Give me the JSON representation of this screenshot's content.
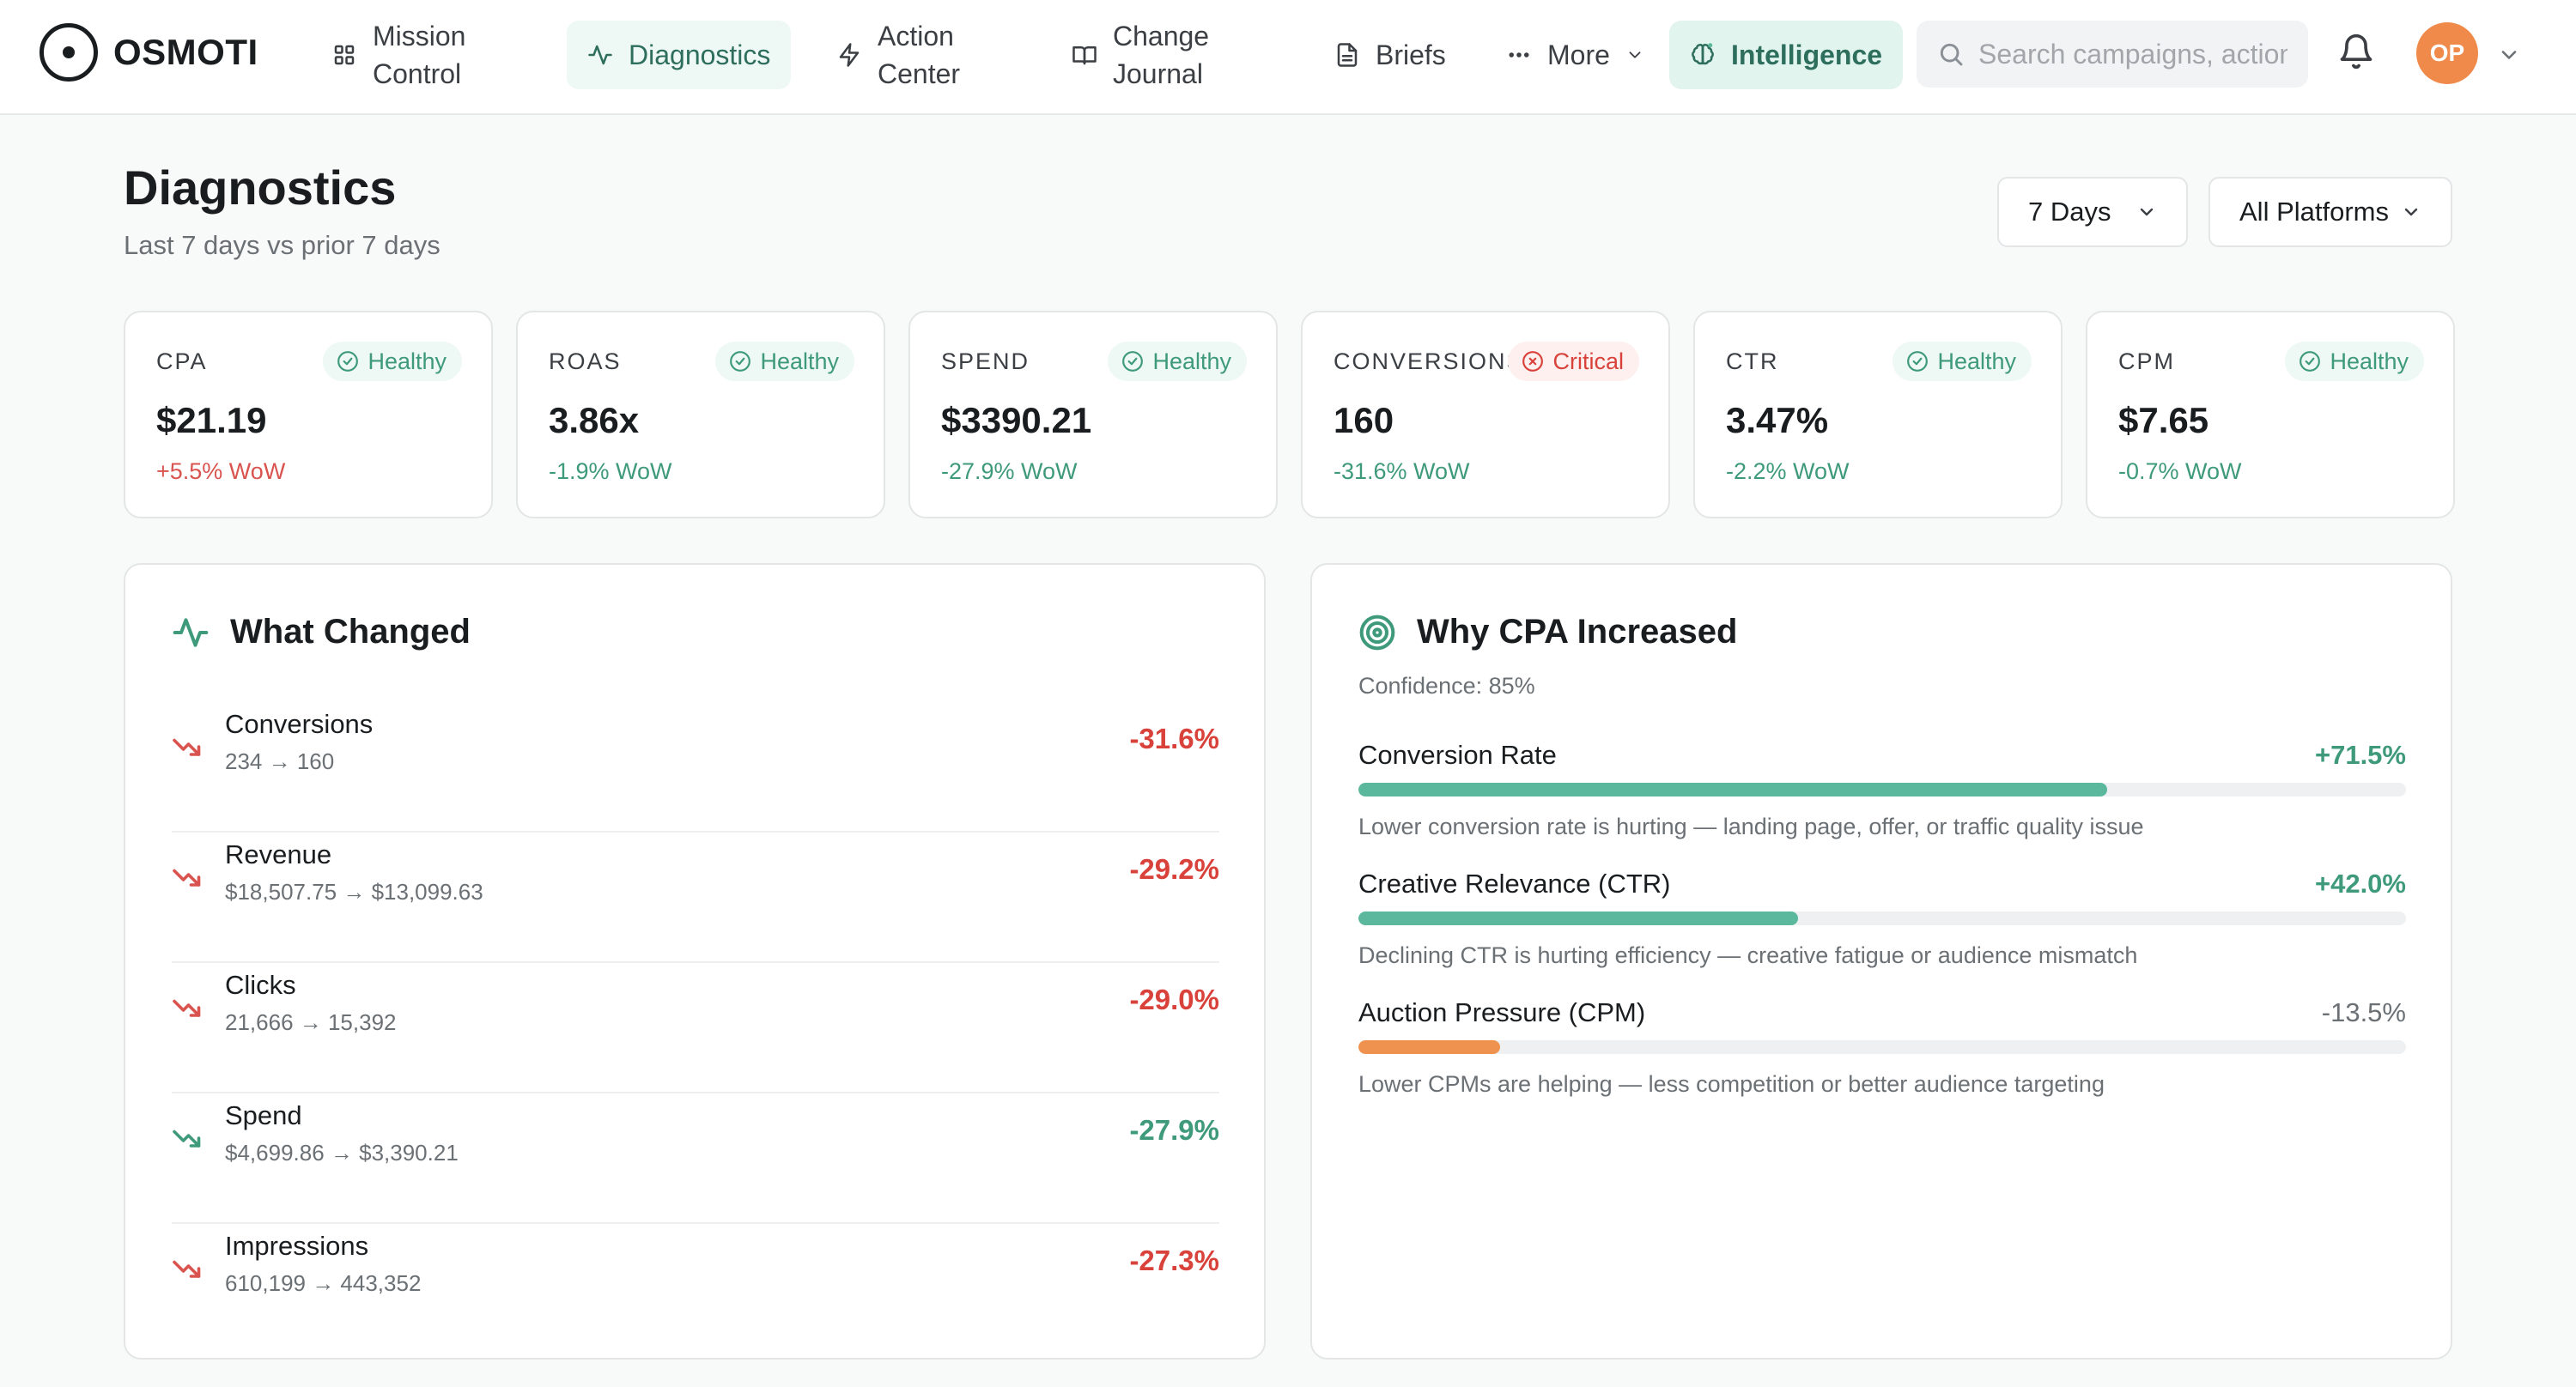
{
  "brand": {
    "name": "OSMOTI"
  },
  "nav": {
    "items": [
      {
        "label": "Mission Control",
        "icon": "grid-icon"
      },
      {
        "label": "Diagnostics",
        "icon": "activity-icon",
        "active": true
      },
      {
        "label": "Action Center",
        "icon": "zap-icon"
      },
      {
        "label": "Change Journal",
        "icon": "book-open-icon"
      },
      {
        "label": "Briefs",
        "icon": "file-text-icon"
      },
      {
        "label": "More",
        "icon": "more-horizontal-icon"
      },
      {
        "label": "Intelligence",
        "icon": "brain-icon"
      }
    ],
    "search_placeholder": "Search campaigns, actions...",
    "avatar_initials": "OP"
  },
  "header": {
    "title": "Diagnostics",
    "subtitle": "Last 7 days vs prior 7 days",
    "range_select": "7 Days",
    "platform_select": "All Platforms"
  },
  "kpis": [
    {
      "label": "CPA",
      "status": "Healthy",
      "value": "$21.19",
      "delta": "+5.5% WoW",
      "delta_tone": "negative"
    },
    {
      "label": "ROAS",
      "status": "Healthy",
      "value": "3.86x",
      "delta": "-1.9% WoW",
      "delta_tone": "positive"
    },
    {
      "label": "SPEND",
      "status": "Healthy",
      "value": "$3390.21",
      "delta": "-27.9% WoW",
      "delta_tone": "positive"
    },
    {
      "label": "CONVERSIONS",
      "status": "Critical",
      "value": "160",
      "delta": "-31.6% WoW",
      "delta_tone": "positive"
    },
    {
      "label": "CTR",
      "status": "Healthy",
      "value": "3.47%",
      "delta": "-2.2% WoW",
      "delta_tone": "positive"
    },
    {
      "label": "CPM",
      "status": "Healthy",
      "value": "$7.65",
      "delta": "-0.7% WoW",
      "delta_tone": "positive"
    }
  ],
  "what_changed": {
    "title": "What Changed",
    "rows": [
      {
        "name": "Conversions",
        "from_to": "234 → 160",
        "pct": "-31.6%",
        "tone": "negative"
      },
      {
        "name": "Revenue",
        "from_to": "$18,507.75 → $13,099.63",
        "pct": "-29.2%",
        "tone": "negative"
      },
      {
        "name": "Clicks",
        "from_to": "21,666 → 15,392",
        "pct": "-29.0%",
        "tone": "negative"
      },
      {
        "name": "Spend",
        "from_to": "$4,699.86 → $3,390.21",
        "pct": "-27.9%",
        "tone": "positive"
      },
      {
        "name": "Impressions",
        "from_to": "610,199 → 443,352",
        "pct": "-27.3%",
        "tone": "negative"
      }
    ]
  },
  "why_cpa": {
    "title": "Why CPA Increased",
    "confidence": "Confidence: 85%",
    "drivers": [
      {
        "name": "Conversion Rate",
        "pct": "+71.5%",
        "level": 0.715,
        "color": "#5bb89c",
        "tone": "positive",
        "desc": "Lower conversion rate is hurting — landing page, offer, or traffic quality issue"
      },
      {
        "name": "Creative Relevance (CTR)",
        "pct": "+42.0%",
        "level": 0.42,
        "color": "#5bb89c",
        "tone": "positive",
        "desc": "Declining CTR is hurting efficiency — creative fatigue or audience mismatch"
      },
      {
        "name": "Auction Pressure (CPM)",
        "pct": "-13.5%",
        "level": 0.135,
        "color": "#f0924f",
        "tone": "neutral",
        "desc": "Lower CPMs are helping — less competition or better audience targeting"
      }
    ]
  },
  "colors": {
    "accent": "#3e9a7a",
    "critical": "#d9423b",
    "avatar": "#f08a4b"
  }
}
